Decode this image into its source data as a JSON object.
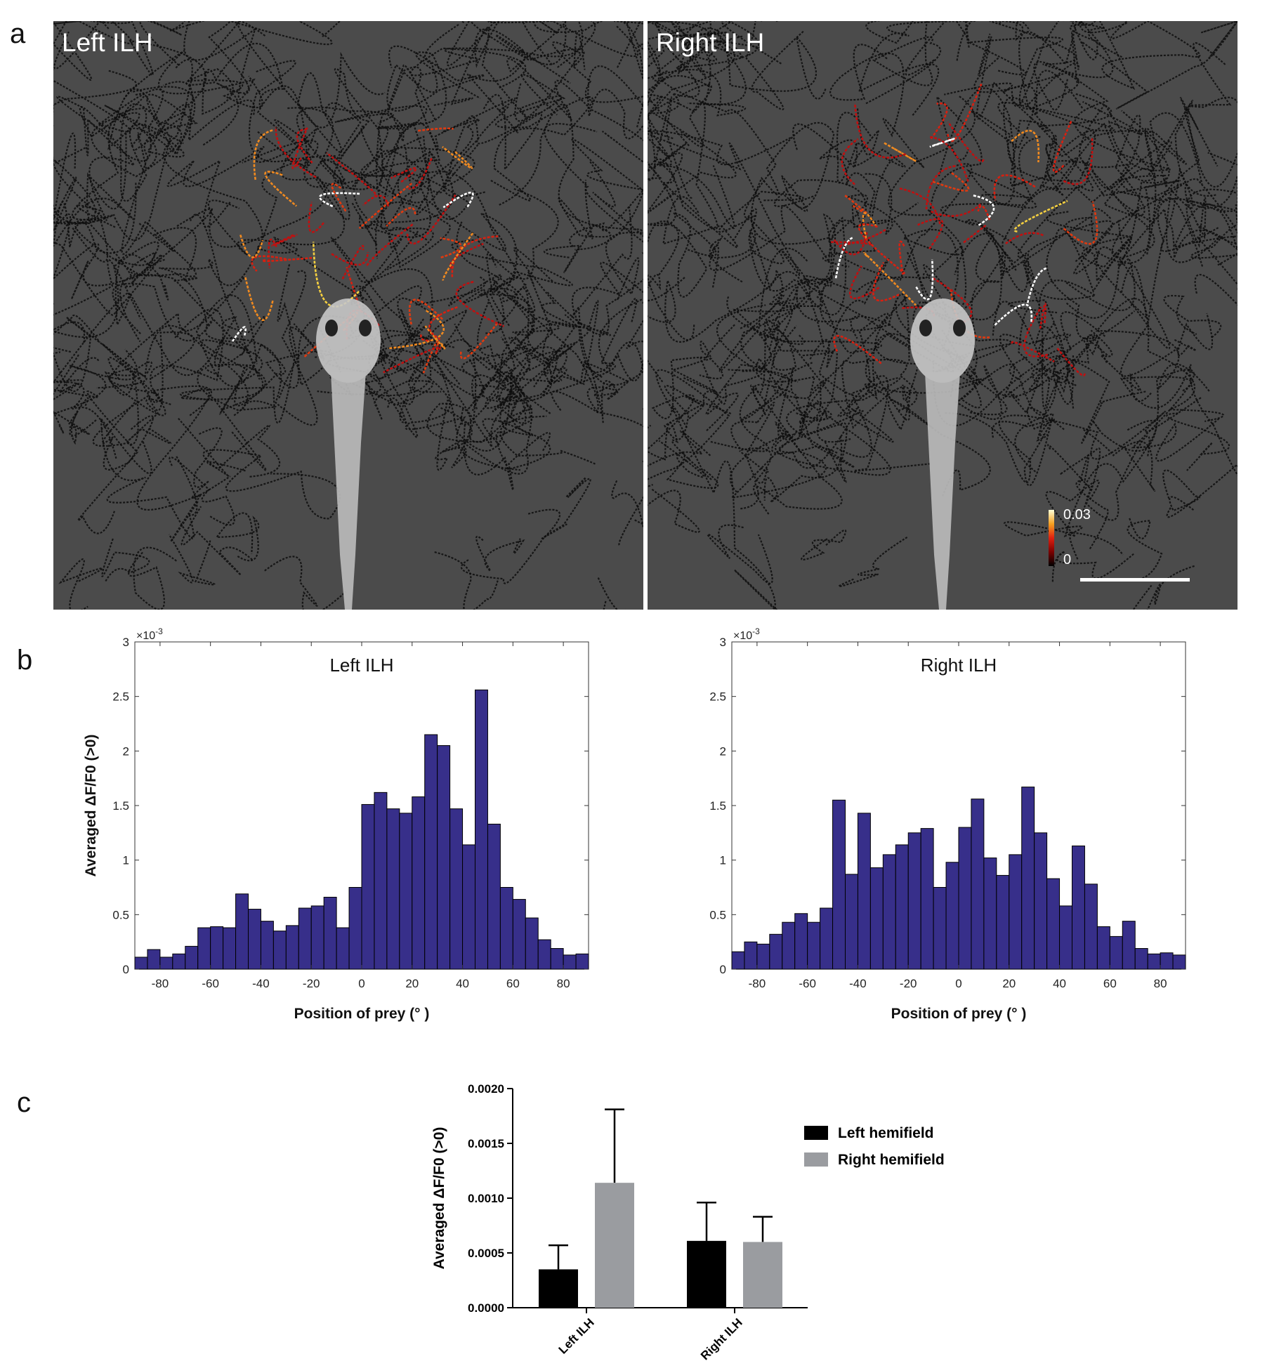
{
  "panel_letters": {
    "a": "a",
    "b": "b",
    "c": "c"
  },
  "images": {
    "left_label": "Left ILH",
    "right_label": "Right ILH",
    "colorbar_max": "0.03",
    "colorbar_min": "0"
  },
  "chart_data": [
    {
      "type": "bar",
      "title": "Left ILH",
      "xlabel": "Position of prey (° )",
      "ylabel": "Averaged ΔF/F0 (>0)",
      "exponent_label": "×10",
      "exponent_power": "-3",
      "xlim": [
        -90,
        90
      ],
      "ylim": [
        0,
        3
      ],
      "xticks": [
        -80,
        -60,
        -40,
        -20,
        0,
        20,
        40,
        60,
        80
      ],
      "yticks": [
        0,
        0.5,
        1,
        1.5,
        2,
        2.5,
        3
      ],
      "bin_width": 5,
      "x": [
        -87.5,
        -82.5,
        -77.5,
        -72.5,
        -67.5,
        -62.5,
        -57.5,
        -52.5,
        -47.5,
        -42.5,
        -37.5,
        -32.5,
        -27.5,
        -22.5,
        -17.5,
        -12.5,
        -7.5,
        -2.5,
        2.5,
        7.5,
        12.5,
        17.5,
        22.5,
        27.5,
        32.5,
        37.5,
        42.5,
        47.5,
        52.5,
        57.5,
        62.5,
        67.5,
        72.5,
        77.5,
        82.5,
        87.5
      ],
      "values": [
        0.11,
        0.18,
        0.11,
        0.14,
        0.21,
        0.38,
        0.39,
        0.38,
        0.69,
        0.55,
        0.44,
        0.35,
        0.4,
        0.56,
        0.58,
        0.66,
        0.38,
        0.75,
        1.51,
        1.62,
        1.47,
        1.43,
        1.58,
        2.15,
        2.05,
        1.47,
        1.14,
        2.56,
        1.33,
        0.75,
        0.64,
        0.47,
        0.27,
        0.19,
        0.13,
        0.14
      ],
      "bar_color": "#372f8a"
    },
    {
      "type": "bar",
      "title": "Right ILH",
      "xlabel": "Position of prey (° )",
      "ylabel": "",
      "exponent_label": "×10",
      "exponent_power": "-3",
      "xlim": [
        -90,
        90
      ],
      "ylim": [
        0,
        3
      ],
      "xticks": [
        -80,
        -60,
        -40,
        -20,
        0,
        20,
        40,
        60,
        80
      ],
      "yticks": [
        0,
        0.5,
        1,
        1.5,
        2,
        2.5,
        3
      ],
      "bin_width": 5,
      "x": [
        -87.5,
        -82.5,
        -77.5,
        -72.5,
        -67.5,
        -62.5,
        -57.5,
        -52.5,
        -47.5,
        -42.5,
        -37.5,
        -32.5,
        -27.5,
        -22.5,
        -17.5,
        -12.5,
        -7.5,
        -2.5,
        2.5,
        7.5,
        12.5,
        17.5,
        22.5,
        27.5,
        32.5,
        37.5,
        42.5,
        47.5,
        52.5,
        57.5,
        62.5,
        67.5,
        72.5,
        77.5,
        82.5,
        87.5
      ],
      "values": [
        0.16,
        0.25,
        0.23,
        0.32,
        0.43,
        0.51,
        0.43,
        0.56,
        1.55,
        0.87,
        1.43,
        0.93,
        1.05,
        1.14,
        1.25,
        1.29,
        0.75,
        0.98,
        1.3,
        1.56,
        1.02,
        0.86,
        1.05,
        1.67,
        1.25,
        0.83,
        0.58,
        1.13,
        0.78,
        0.39,
        0.3,
        0.44,
        0.19,
        0.14,
        0.15,
        0.13
      ],
      "bar_color": "#372f8a"
    },
    {
      "type": "bar",
      "title": "",
      "xlabel": "",
      "ylabel": "Averaged ΔF/F0 (>0)",
      "ylim": [
        0,
        0.002
      ],
      "yticks": [
        "0.0000",
        "0.0005",
        "0.0010",
        "0.0015",
        "0.0020"
      ],
      "categories": [
        "Left ILH",
        "Right ILH"
      ],
      "series": [
        {
          "name": "Left hemifield",
          "color": "#000000",
          "values": [
            0.00035,
            0.00061
          ],
          "errors": [
            0.00022,
            0.00035
          ]
        },
        {
          "name": "Right hemifield",
          "color": "#9a9ca0",
          "values": [
            0.00114,
            0.0006
          ],
          "errors": [
            0.00067,
            0.00023
          ]
        }
      ],
      "legend": "right"
    }
  ]
}
